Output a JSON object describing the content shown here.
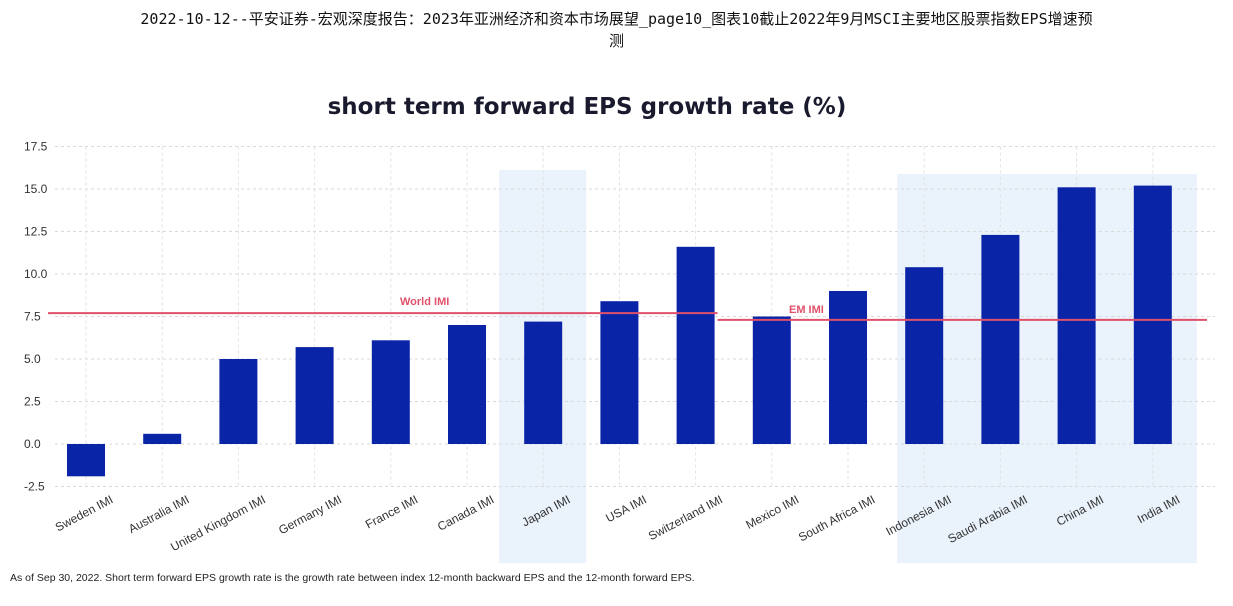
{
  "header": {
    "line1": "2022-10-12--平安证券-宏观深度报告：2023年亚洲经济和资本市场展望_page10_图表10截止2022年9月MSCI主要地区股票指数EPS增速预",
    "line2": "测"
  },
  "chart_data": {
    "type": "bar",
    "title": "short term forward EPS growth rate (%)",
    "categories": [
      "Sweden IMI",
      "Australia IMI",
      "United Kingdom IMI",
      "Germany IMI",
      "France IMI",
      "Canada IMI",
      "Japan IMI",
      "USA IMI",
      "Switzerland IMI",
      "Mexico IMI",
      "South Africa IMI",
      "Indonesia IMI",
      "Saudi Arabia IMI",
      "China IMI",
      "India IMI"
    ],
    "values": [
      -1.9,
      0.6,
      5.0,
      5.7,
      6.1,
      7.0,
      7.2,
      8.4,
      11.6,
      7.5,
      9.0,
      10.4,
      12.3,
      15.1,
      15.2
    ],
    "ylim": [
      -2.5,
      17.5
    ],
    "yticks": [
      "17.5",
      "15.0",
      "12.5",
      "10.0",
      "7.5",
      "5.0",
      "2.5",
      "0.0",
      "-2.5"
    ],
    "grid": true,
    "bar_color": "#0a24a8",
    "highlight_color": "#eaf2fb",
    "reference_lines": [
      {
        "label": "World IMI",
        "value": 7.7,
        "color": "#e0506a"
      },
      {
        "label": "EM IMI",
        "value": 7.3,
        "color": "#e0506a"
      }
    ]
  },
  "footnote": "As of Sep 30, 2022. Short term forward EPS growth rate is the growth rate between index 12-month backward EPS and the 12-month forward EPS."
}
